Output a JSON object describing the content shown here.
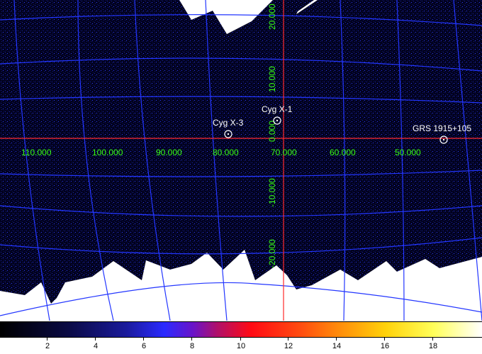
{
  "map": {
    "longitude_labels": [
      "110.000",
      "100.000",
      "90.000",
      "80.000",
      "70.000",
      "60.000",
      "50.000"
    ],
    "latitude_labels": [
      "20.000",
      "10.000",
      "0.000",
      "-10.000",
      "-20.000"
    ],
    "sources": [
      {
        "name": "Cyg X-3"
      },
      {
        "name": "Cyg X-1"
      },
      {
        "name": "GRS 1915+105"
      }
    ],
    "colors": {
      "background_sky": "#02021f",
      "grid": "#2336ff",
      "axes": "#ff2a2a",
      "coordinate_labels": "#39ff14",
      "source_markers": "#ffffff"
    }
  },
  "colorbar": {
    "labels": [
      "2",
      "4",
      "6",
      "8",
      "10",
      "12",
      "14",
      "16",
      "18"
    ],
    "colormap": "black-blue-red-yellow-white"
  }
}
